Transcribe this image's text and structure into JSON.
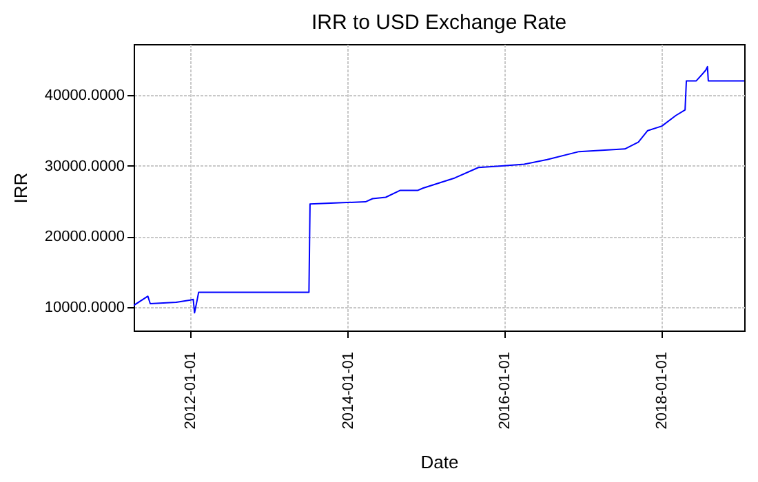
{
  "chart_data": {
    "type": "line",
    "title": "IRR to USD Exchange Rate",
    "xlabel": "Date",
    "ylabel": "IRR",
    "x": [
      "2011-04-12",
      "2011-06-17",
      "2011-06-28",
      "2011-10-27",
      "2012-01-01",
      "2012-01-14",
      "2012-01-20",
      "2012-02-01",
      "2012-02-08",
      "2013-07-05",
      "2013-07-10",
      "2014-03-25",
      "2014-04-27",
      "2014-06-27",
      "2014-09-01",
      "2014-11-22",
      "2014-12-17",
      "2015-05-14",
      "2015-09-01",
      "2015-12-07",
      "2016-04-01",
      "2016-07-17",
      "2016-12-12",
      "2017-07-13",
      "2017-09-14",
      "2017-10-27",
      "2018-01-01",
      "2018-03-07",
      "2018-04-19",
      "2018-04-25",
      "2018-06-10",
      "2018-07-24",
      "2018-08-01",
      "2018-08-05",
      "2019-01-19"
    ],
    "series": [
      {
        "color": "#0000ff",
        "values": [
          10250,
          11550,
          10500,
          10700,
          11000,
          11100,
          9200,
          11000,
          12100,
          12100,
          24600,
          24900,
          25340,
          25540,
          26500,
          26500,
          26830,
          28270,
          29750,
          29950,
          30220,
          30870,
          32000,
          32370,
          33340,
          34960,
          35600,
          37100,
          37900,
          42000,
          42000,
          43500,
          44000,
          42000,
          42000
        ]
      }
    ],
    "xlim": [
      "2011-04-12",
      "2019-01-19"
    ],
    "xticks": [
      "2012-01-01",
      "2014-01-01",
      "2016-01-01",
      "2018-01-01"
    ],
    "ylim": [
      6700,
      47200
    ],
    "yticks": [
      {
        "value": 10000,
        "label": "10000.0000"
      },
      {
        "value": 20000,
        "label": "20000.0000"
      },
      {
        "value": 30000,
        "label": "30000.0000"
      },
      {
        "value": 40000,
        "label": "40000.0000"
      }
    ],
    "grid": true
  }
}
